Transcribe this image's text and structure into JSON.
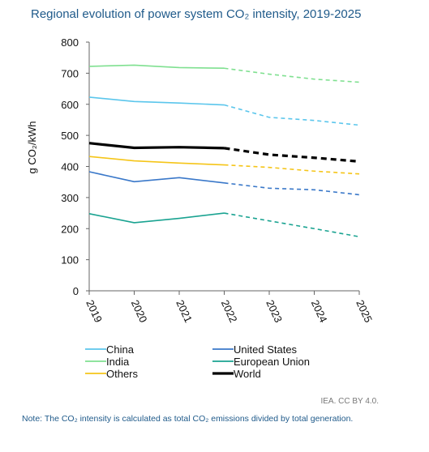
{
  "title": "Regional evolution of power system CO₂ intensity, 2019-2025",
  "credit": "IEA. CC BY 4.0.",
  "note": "Note: The CO₂ intensity is calculated as total CO₂ emissions divided by total generation.",
  "chart_data": {
    "type": "line",
    "ylabel": "g CO₂/kWh",
    "xlabel": "",
    "x": [
      "2019",
      "2020",
      "2021",
      "2022",
      "2023",
      "2024",
      "2025"
    ],
    "ylim": [
      0,
      800
    ],
    "yticks": [
      0,
      100,
      200,
      300,
      400,
      500,
      600,
      700,
      800
    ],
    "grid": false,
    "legend_position": "bottom",
    "solid_until": "2022",
    "dashed_from": "2022",
    "series": [
      {
        "name": "China",
        "color": "#5bc6ec",
        "values": [
          623,
          609,
          604,
          598,
          558,
          548,
          533
        ]
      },
      {
        "name": "India",
        "color": "#7fe090",
        "values": [
          722,
          726,
          718,
          716,
          697,
          681,
          671
        ]
      },
      {
        "name": "Others",
        "color": "#f5c518",
        "values": [
          432,
          418,
          411,
          405,
          397,
          385,
          376
        ]
      },
      {
        "name": "United States",
        "color": "#3a78c9",
        "values": [
          383,
          351,
          364,
          347,
          330,
          325,
          309
        ]
      },
      {
        "name": "European Union",
        "color": "#1aa391",
        "values": [
          248,
          219,
          233,
          250,
          225,
          200,
          174
        ]
      },
      {
        "name": "World",
        "color": "#000000",
        "values": [
          475,
          460,
          462,
          459,
          438,
          428,
          416
        ]
      }
    ]
  }
}
